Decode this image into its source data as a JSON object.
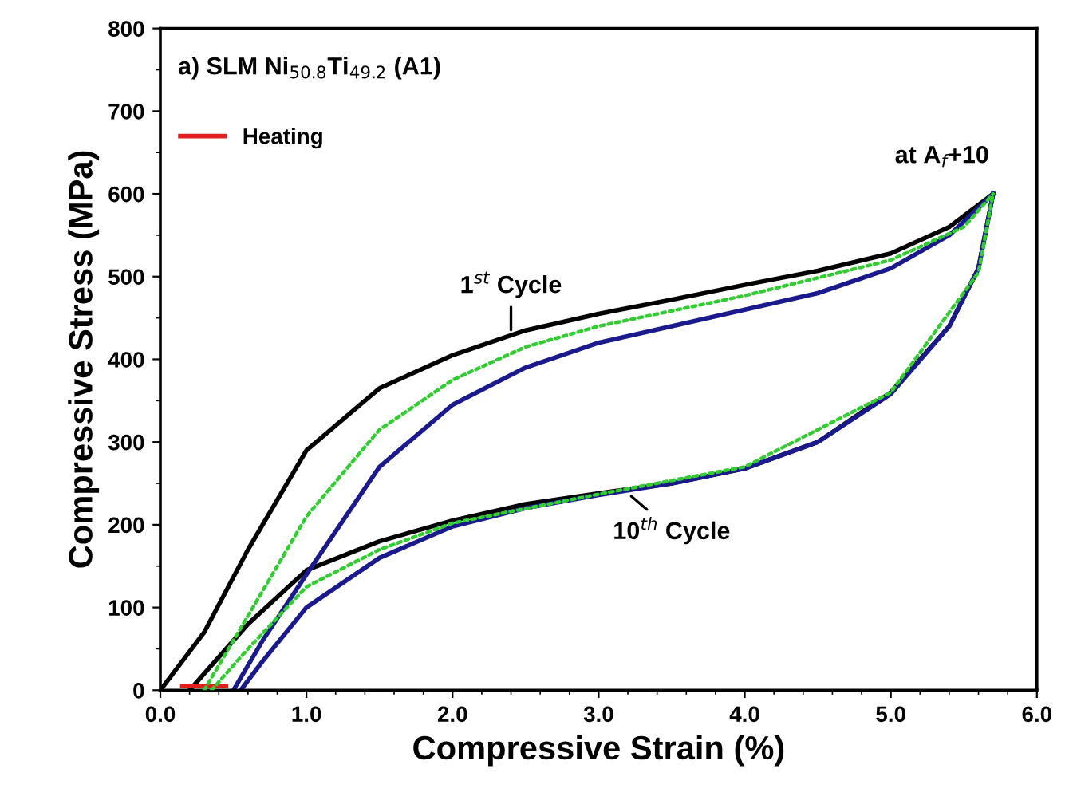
{
  "chart_data": {
    "type": "line",
    "title": "a) SLM Ni$_{50.8}$Ti$_{49.2}$ (A1)",
    "xlabel": "Compressive Strain (%)",
    "ylabel": "Compressive Stress (MPa)",
    "xlim": [
      0,
      6
    ],
    "ylim": [
      0,
      800
    ],
    "xticks": [
      {
        "value": 0,
        "label": "0.0"
      },
      {
        "value": 1,
        "label": "1.0"
      },
      {
        "value": 2,
        "label": "2.0"
      },
      {
        "value": 3,
        "label": "3.0"
      },
      {
        "value": 4,
        "label": "4.0"
      },
      {
        "value": 5,
        "label": "5.0"
      },
      {
        "value": 6,
        "label": "6.0"
      }
    ],
    "yticks": [
      0,
      100,
      200,
      300,
      400,
      500,
      600,
      700,
      800
    ],
    "series": [
      {
        "color": "#000000",
        "line_style": "solid",
        "x": [
          0,
          0.3,
          0.6,
          1.0,
          1.5,
          2.0,
          2.5,
          3.0,
          3.5,
          4.0,
          4.5,
          5.0,
          5.4,
          5.7
        ],
        "values": [
          0,
          70,
          170,
          290,
          365,
          405,
          435,
          455,
          472,
          490,
          507,
          528,
          560,
          600
        ]
      },
      {
        "color": "#000000",
        "line_style": "solid",
        "x": [
          0.2,
          0.6,
          1.0,
          1.5,
          2.0,
          2.5,
          3.0,
          3.5,
          4.0,
          4.5,
          5.0,
          5.4,
          5.6,
          5.7
        ],
        "values": [
          0,
          80,
          145,
          180,
          205,
          225,
          238,
          250,
          268,
          300,
          360,
          440,
          510,
          600
        ]
      },
      {
        "color": "#33cc33",
        "line_style": "dotted",
        "x": [
          0.3,
          0.6,
          1.0,
          1.5,
          2.0,
          2.5,
          3.0,
          4.0,
          5.0,
          5.5,
          5.7
        ],
        "values": [
          0,
          90,
          210,
          315,
          375,
          415,
          440,
          477,
          520,
          560,
          600
        ]
      },
      {
        "color": "#33cc33",
        "line_style": "dotted",
        "x": [
          0.35,
          0.6,
          1.0,
          1.5,
          2.0,
          3.0,
          4.0,
          5.0,
          5.6,
          5.7
        ],
        "values": [
          0,
          50,
          125,
          170,
          202,
          237,
          270,
          360,
          505,
          600
        ]
      },
      {
        "color": "#1a1a8c",
        "line_style": "solid",
        "x": [
          0.5,
          0.7,
          1.0,
          1.5,
          2.0,
          2.5,
          3.0,
          3.5,
          4.0,
          4.5,
          5.0,
          5.4,
          5.7
        ],
        "values": [
          0,
          60,
          140,
          270,
          345,
          390,
          420,
          440,
          460,
          480,
          510,
          550,
          600
        ]
      },
      {
        "color": "#1a1a8c",
        "line_style": "solid",
        "x": [
          0.55,
          0.7,
          1.0,
          1.5,
          2.0,
          2.5,
          3.0,
          3.5,
          4.0,
          4.5,
          5.0,
          5.4,
          5.6,
          5.7
        ],
        "values": [
          0,
          35,
          100,
          160,
          198,
          220,
          236,
          250,
          268,
          300,
          358,
          440,
          510,
          600
        ]
      },
      {
        "name": "Heating",
        "color": "#e0201e",
        "line_style": "solid",
        "x": [
          0.15,
          0.45
        ],
        "values": [
          5,
          5
        ]
      }
    ],
    "annotations": [
      {
        "text": "1$^{st}$ Cycle",
        "x": 2.4,
        "y": 430
      },
      {
        "text": "10$^{th}$ Cycle",
        "x": 3.2,
        "y": 238
      },
      {
        "text": "at A$_{f}$+10",
        "x": 5.7,
        "y": 600
      }
    ],
    "legend": "top left"
  }
}
